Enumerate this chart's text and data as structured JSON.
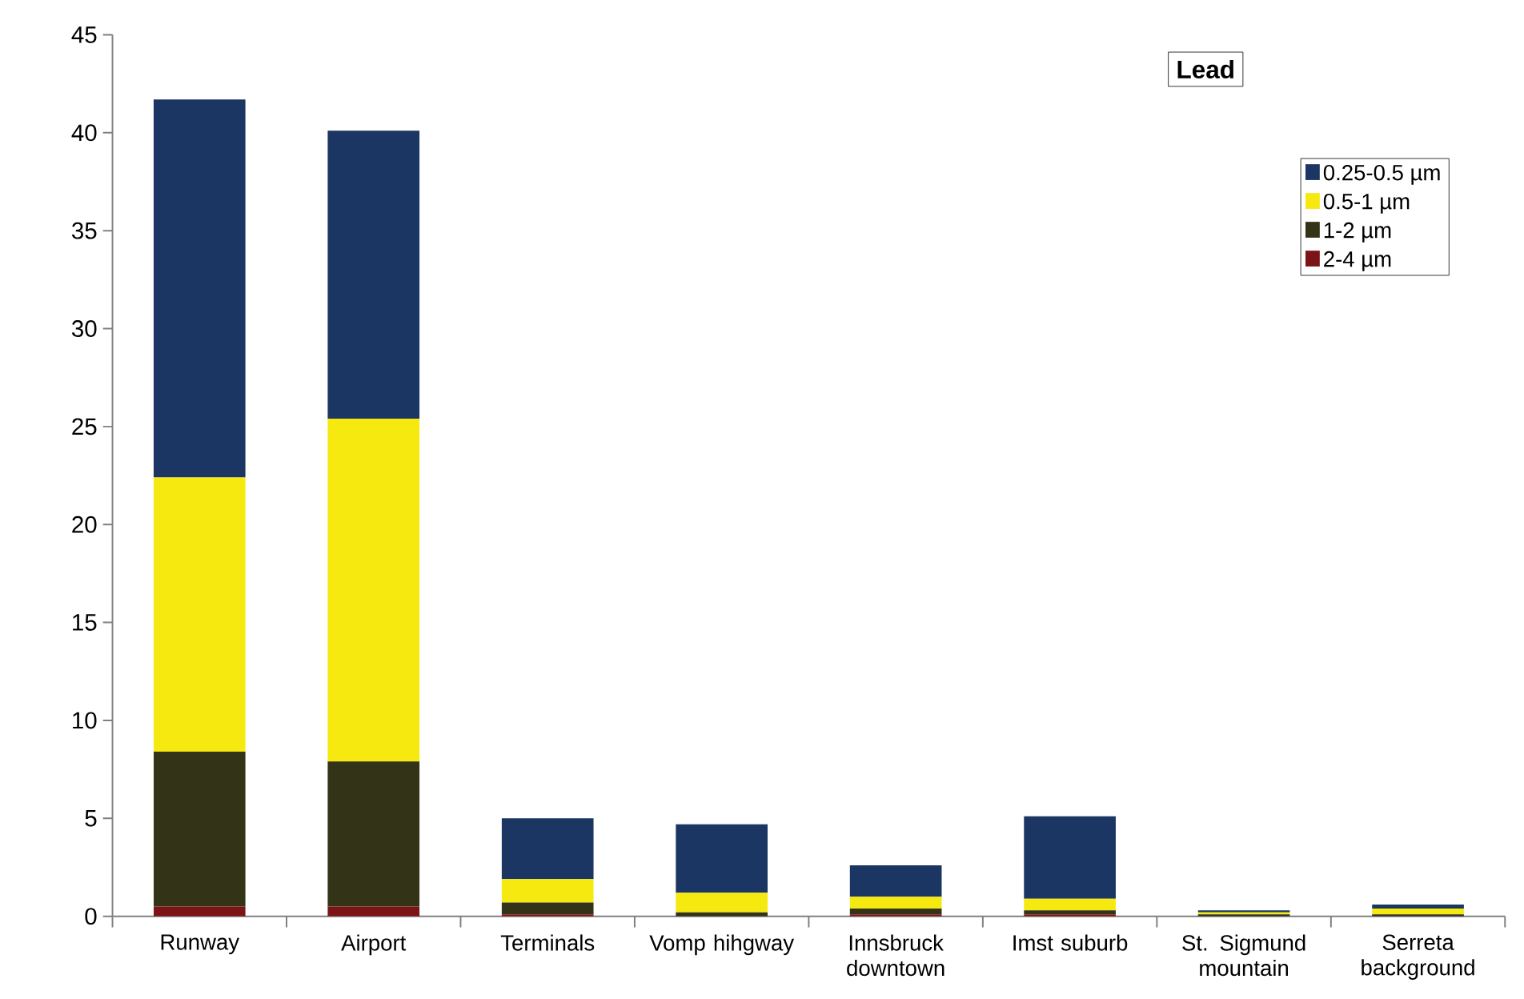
{
  "chart_data": {
    "type": "bar",
    "stacked": true,
    "title": "Lead",
    "categories": [
      "Runway",
      "Airport",
      "Terminals",
      "Vomp hihgway",
      "Innsbruck downtown",
      "Imst suburb",
      "St. Sigmund mountain",
      "Serreta background"
    ],
    "series": [
      {
        "name": "2-4 µm",
        "color": "#7b1416",
        "values": [
          0.5,
          0.5,
          0.1,
          0,
          0.1,
          0.1,
          0,
          0
        ]
      },
      {
        "name": "1-2 µm",
        "color": "#333318",
        "values": [
          7.9,
          7.4,
          0.6,
          0.2,
          0.3,
          0.2,
          0.1,
          0.1
        ]
      },
      {
        "name": "0.5-1 µm",
        "color": "#f5e90f",
        "values": [
          14.0,
          17.5,
          1.2,
          1.0,
          0.6,
          0.6,
          0.1,
          0.3
        ]
      },
      {
        "name": "0.25-0.5 µm",
        "color": "#1c3664",
        "values": [
          19.3,
          14.7,
          3.1,
          3.5,
          1.6,
          4.2,
          0.1,
          0.2
        ]
      }
    ],
    "ylim": [
      0,
      45
    ],
    "yticks": [
      0,
      5,
      10,
      15,
      20,
      25,
      30,
      35,
      40,
      45
    ],
    "legend": "top right"
  }
}
